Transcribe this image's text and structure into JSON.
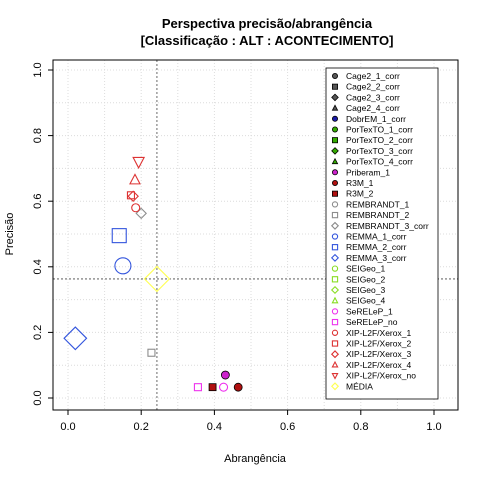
{
  "chart_data": {
    "type": "scatter",
    "title": "Perspectiva precisão/abrangência",
    "subtitle": "[Classificação : ALT : ACONTECIMENTO]",
    "xlabel": "Abrangência",
    "ylabel": "Precisão",
    "xlim": [
      0,
      1
    ],
    "ylim": [
      0,
      1
    ],
    "xticks": [
      "0.0",
      "0.2",
      "0.4",
      "0.6",
      "0.8",
      "1.0"
    ],
    "yticks": [
      "0.0",
      "0.2",
      "0.4",
      "0.6",
      "0.8",
      "1.0"
    ],
    "grid": true,
    "legend_position": "right",
    "reference_lines": {
      "x": 0.243,
      "y": 0.363
    },
    "series": [
      {
        "name": "Cage2_1_corr",
        "shape": "circle",
        "fill": true,
        "color": "#555555",
        "points": []
      },
      {
        "name": "Cage2_2_corr",
        "shape": "square",
        "fill": true,
        "color": "#555555",
        "points": []
      },
      {
        "name": "Cage2_3_corr",
        "shape": "diamond",
        "fill": true,
        "color": "#555555",
        "points": []
      },
      {
        "name": "Cage2_4_corr",
        "shape": "triangle",
        "fill": true,
        "color": "#555555",
        "points": []
      },
      {
        "name": "DobrEM_1_corr",
        "shape": "circle",
        "fill": true,
        "color": "#1a1aa8",
        "points": []
      },
      {
        "name": "PorTexTO_1_corr",
        "shape": "circle",
        "fill": true,
        "color": "#33aa00",
        "points": []
      },
      {
        "name": "PorTexTO_2_corr",
        "shape": "square",
        "fill": true,
        "color": "#33aa00",
        "points": []
      },
      {
        "name": "PorTexTO_3_corr",
        "shape": "diamond",
        "fill": true,
        "color": "#33aa00",
        "points": []
      },
      {
        "name": "PorTexTO_4_corr",
        "shape": "triangle",
        "fill": true,
        "color": "#33aa00",
        "points": []
      },
      {
        "name": "Priberam_1",
        "shape": "circle",
        "fill": true,
        "color": "#cc22cc",
        "points": [
          {
            "x": 0.43,
            "y": 0.07,
            "r": 4
          }
        ]
      },
      {
        "name": "R3M_1",
        "shape": "circle",
        "fill": true,
        "color": "#b01010",
        "points": [
          {
            "x": 0.465,
            "y": 0.033,
            "r": 4
          }
        ]
      },
      {
        "name": "R3M_2",
        "shape": "square",
        "fill": true,
        "color": "#b01010",
        "points": [
          {
            "x": 0.395,
            "y": 0.033,
            "r": 3.5
          }
        ]
      },
      {
        "name": "REMBRANDT_1",
        "shape": "circle",
        "fill": false,
        "color": "#8c8c8c",
        "points": []
      },
      {
        "name": "REMBRANDT_2",
        "shape": "square",
        "fill": false,
        "color": "#8c8c8c",
        "points": [
          {
            "x": 0.228,
            "y": 0.138,
            "r": 3.5
          }
        ]
      },
      {
        "name": "REMBRANDT_3_corr",
        "shape": "diamond",
        "fill": false,
        "color": "#8c8c8c",
        "points": [
          {
            "x": 0.2,
            "y": 0.563,
            "r": 4
          }
        ]
      },
      {
        "name": "REMMA_1_corr",
        "shape": "circle",
        "fill": false,
        "color": "#3355dd",
        "points": [
          {
            "x": 0.15,
            "y": 0.403,
            "r": 8
          }
        ]
      },
      {
        "name": "REMMA_2_corr",
        "shape": "square",
        "fill": false,
        "color": "#3355dd",
        "points": [
          {
            "x": 0.14,
            "y": 0.495,
            "r": 7
          }
        ]
      },
      {
        "name": "REMMA_3_corr",
        "shape": "diamond",
        "fill": false,
        "color": "#3355dd",
        "points": [
          {
            "x": 0.02,
            "y": 0.182,
            "r": 9
          }
        ]
      },
      {
        "name": "SEIGeo_1",
        "shape": "circle",
        "fill": false,
        "color": "#88dd22",
        "points": []
      },
      {
        "name": "SEIGeo_2",
        "shape": "square",
        "fill": false,
        "color": "#88dd22",
        "points": []
      },
      {
        "name": "SEIGeo_3",
        "shape": "diamond",
        "fill": false,
        "color": "#88dd22",
        "points": []
      },
      {
        "name": "SEIGeo_4",
        "shape": "triangle",
        "fill": false,
        "color": "#88dd22",
        "points": []
      },
      {
        "name": "SeRELeP_1",
        "shape": "circle",
        "fill": false,
        "color": "#ee33ee",
        "points": [
          {
            "x": 0.425,
            "y": 0.033,
            "r": 4
          }
        ]
      },
      {
        "name": "SeRELeP_no",
        "shape": "square",
        "fill": false,
        "color": "#ee33ee",
        "points": [
          {
            "x": 0.355,
            "y": 0.033,
            "r": 3.5
          }
        ]
      },
      {
        "name": "XIP-L2F/Xerox_1",
        "shape": "circle",
        "fill": false,
        "color": "#dd3333",
        "points": [
          {
            "x": 0.185,
            "y": 0.58,
            "r": 4
          }
        ]
      },
      {
        "name": "XIP-L2F/Xerox_2",
        "shape": "square",
        "fill": false,
        "color": "#dd3333",
        "points": [
          {
            "x": 0.172,
            "y": 0.618,
            "r": 3.5
          }
        ]
      },
      {
        "name": "XIP-L2F/Xerox_3",
        "shape": "diamond",
        "fill": false,
        "color": "#dd3333",
        "points": [
          {
            "x": 0.178,
            "y": 0.615,
            "r": 4
          }
        ]
      },
      {
        "name": "XIP-L2F/Xerox_4",
        "shape": "triangle",
        "fill": false,
        "color": "#dd3333",
        "points": [
          {
            "x": 0.183,
            "y": 0.665,
            "r": 5
          }
        ]
      },
      {
        "name": "XIP-L2F/Xerox_no",
        "shape": "triangle-down",
        "fill": false,
        "color": "#dd3333",
        "points": [
          {
            "x": 0.193,
            "y": 0.72,
            "r": 5.5
          }
        ]
      },
      {
        "name": "MÉDIA",
        "shape": "diamond",
        "fill": false,
        "color": "#ffff55",
        "points": [
          {
            "x": 0.243,
            "y": 0.363,
            "r": 10
          }
        ]
      }
    ]
  }
}
